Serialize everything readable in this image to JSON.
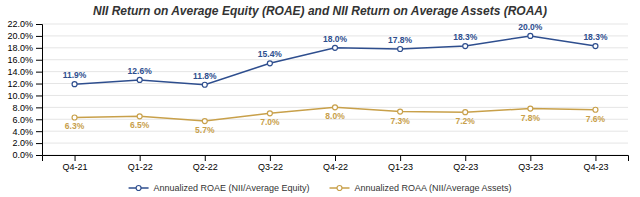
{
  "chart_data": {
    "type": "line",
    "title": "NII Return on Average Equity (ROAE) and NII Return on Average Assets (ROAA)",
    "categories": [
      "Q4-21",
      "Q1-22",
      "Q2-22",
      "Q3-22",
      "Q4-22",
      "Q1-23",
      "Q2-23",
      "Q3-23",
      "Q4-23"
    ],
    "series": [
      {
        "name": "Annualized ROAE (NII/Average Equity)",
        "color": "#2E4E8E",
        "marker": "circle",
        "values": [
          11.9,
          12.6,
          11.8,
          15.4,
          18.0,
          17.8,
          18.3,
          20.0,
          18.3
        ],
        "value_labels": [
          "11.9%",
          "12.6%",
          "11.8%",
          "15.4%",
          "18.0%",
          "17.8%",
          "18.3%",
          "20.0%",
          "18.3%"
        ]
      },
      {
        "name": "Annualized ROAA (NII/Average Assets)",
        "color": "#C8A04A",
        "marker": "circle",
        "values": [
          6.3,
          6.5,
          5.7,
          7.0,
          8.0,
          7.3,
          7.2,
          7.8,
          7.6
        ],
        "value_labels": [
          "6.3%",
          "6.5%",
          "5.7%",
          "7.0%",
          "8.0%",
          "7.3%",
          "7.2%",
          "7.8%",
          "7.6%"
        ]
      }
    ],
    "ylim": [
      0.0,
      22.0
    ],
    "yticks": [
      {
        "value": 0.0,
        "label": "0.0%"
      },
      {
        "value": 2.0,
        "label": "2.0%"
      },
      {
        "value": 4.0,
        "label": "4.0%"
      },
      {
        "value": 6.0,
        "label": "6.0%"
      },
      {
        "value": 8.0,
        "label": "8.0%"
      },
      {
        "value": 10.0,
        "label": "10.0%"
      },
      {
        "value": 12.0,
        "label": "12.0%"
      },
      {
        "value": 14.0,
        "label": "14.0%"
      },
      {
        "value": 16.0,
        "label": "16.0%"
      },
      {
        "value": 18.0,
        "label": "18.0%"
      },
      {
        "value": 20.0,
        "label": "20.0%"
      },
      {
        "value": 22.0,
        "label": "22.0%"
      }
    ],
    "grid": true,
    "data_labels": true,
    "legend": "bottom"
  }
}
